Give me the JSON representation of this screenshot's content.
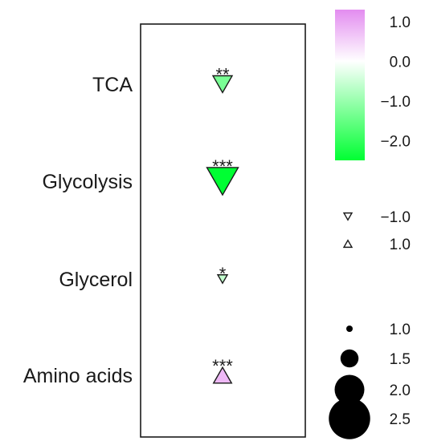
{
  "chart_data": {
    "type": "scatter",
    "categories": [
      "TCA",
      "Glycolysis",
      "Glycerol",
      "Amino acids"
    ],
    "points": [
      {
        "category": "TCA",
        "value": -1.3,
        "size": 1.6,
        "direction": "down",
        "significance": "**"
      },
      {
        "category": "Glycolysis",
        "value": -2.5,
        "size": 2.6,
        "direction": "down",
        "significance": "***"
      },
      {
        "category": "Glycerol",
        "value": -0.6,
        "size": 0.8,
        "direction": "down",
        "significance": "*"
      },
      {
        "category": "Amino acids",
        "value": 0.8,
        "size": 1.5,
        "direction": "up",
        "significance": "***"
      }
    ],
    "color_scale": {
      "min": -2.5,
      "max": 1.3,
      "low_color": "#00ff33",
      "mid_color": "#ffffff",
      "high_color": "#e38cf0",
      "tick_labels": [
        "1.0",
        "0.0",
        "−1.0",
        "−2.0"
      ],
      "tick_values": [
        1.0,
        0.0,
        -1.0,
        -2.0
      ]
    },
    "direction_legend": [
      {
        "direction": "down",
        "label": "−1.0"
      },
      {
        "direction": "up",
        "label": "1.0"
      }
    ],
    "size_legend": [
      {
        "size": 1.0,
        "label": "1.0"
      },
      {
        "size": 1.5,
        "label": "1.5"
      },
      {
        "size": 2.0,
        "label": "2.0"
      },
      {
        "size": 2.5,
        "label": "2.5"
      }
    ]
  }
}
